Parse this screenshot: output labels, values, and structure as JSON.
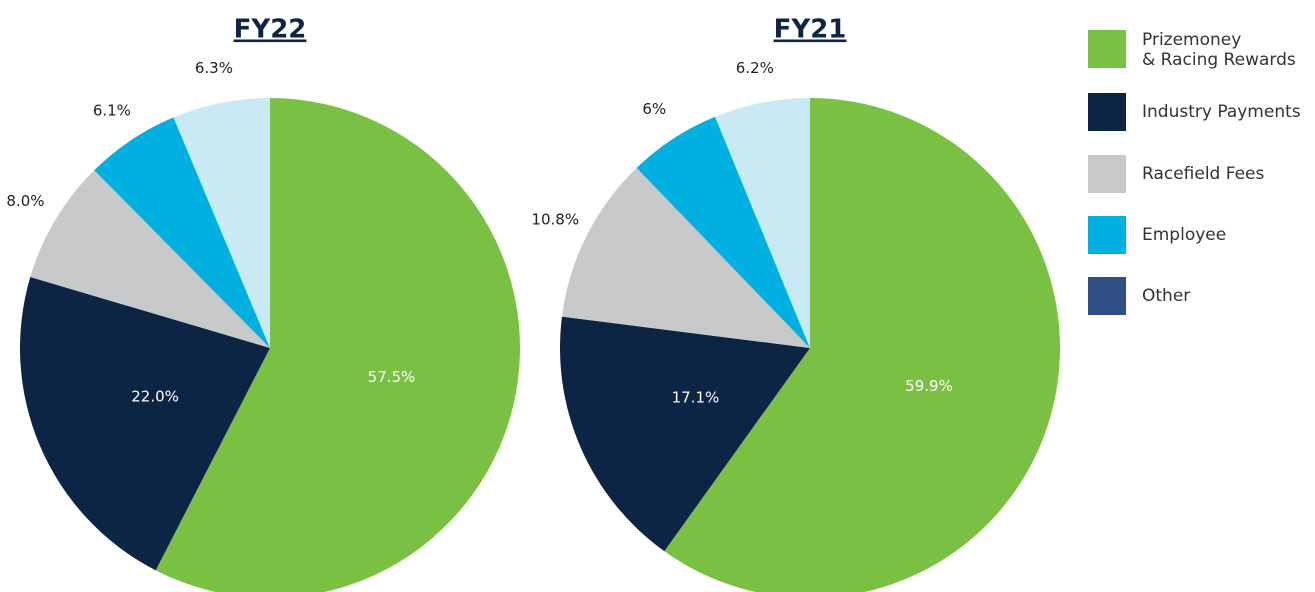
{
  "chart_data": [
    {
      "type": "pie",
      "title": "FY22",
      "categories": [
        "Prizemoney & Racing Rewards",
        "Industry Payments",
        "Racefield Fees",
        "Employee",
        "Other"
      ],
      "values": [
        57.5,
        22.0,
        8.0,
        6.1,
        6.3
      ],
      "value_labels": [
        "57.5%",
        "22.0%",
        "8.0%",
        "6.1%",
        "6.3%"
      ],
      "colors": [
        "#7ac143",
        "#0c2545",
        "#c8c9cb",
        "#00b0e0",
        "#c9eaf5"
      ]
    },
    {
      "type": "pie",
      "title": "FY21",
      "categories": [
        "Prizemoney & Racing Rewards",
        "Industry Payments",
        "Racefield Fees",
        "Employee",
        "Other"
      ],
      "values": [
        59.9,
        17.1,
        10.8,
        6,
        6.2
      ],
      "value_labels": [
        "59.9%",
        "17.1%",
        "10.8%",
        "6%",
        "6.2%"
      ],
      "colors": [
        "#7ac143",
        "#0c2545",
        "#c8c9cb",
        "#00b0e0",
        "#c9eaf5"
      ]
    }
  ],
  "legend": {
    "labels": [
      "Prizemoney\n& Racing Rewards",
      "Industry Payments",
      "Racefield Fees",
      "Employee",
      "Other"
    ],
    "colors": [
      "#7ac143",
      "#0c2545",
      "#c8c9cb",
      "#00b0e0",
      "#2e4e86"
    ]
  }
}
